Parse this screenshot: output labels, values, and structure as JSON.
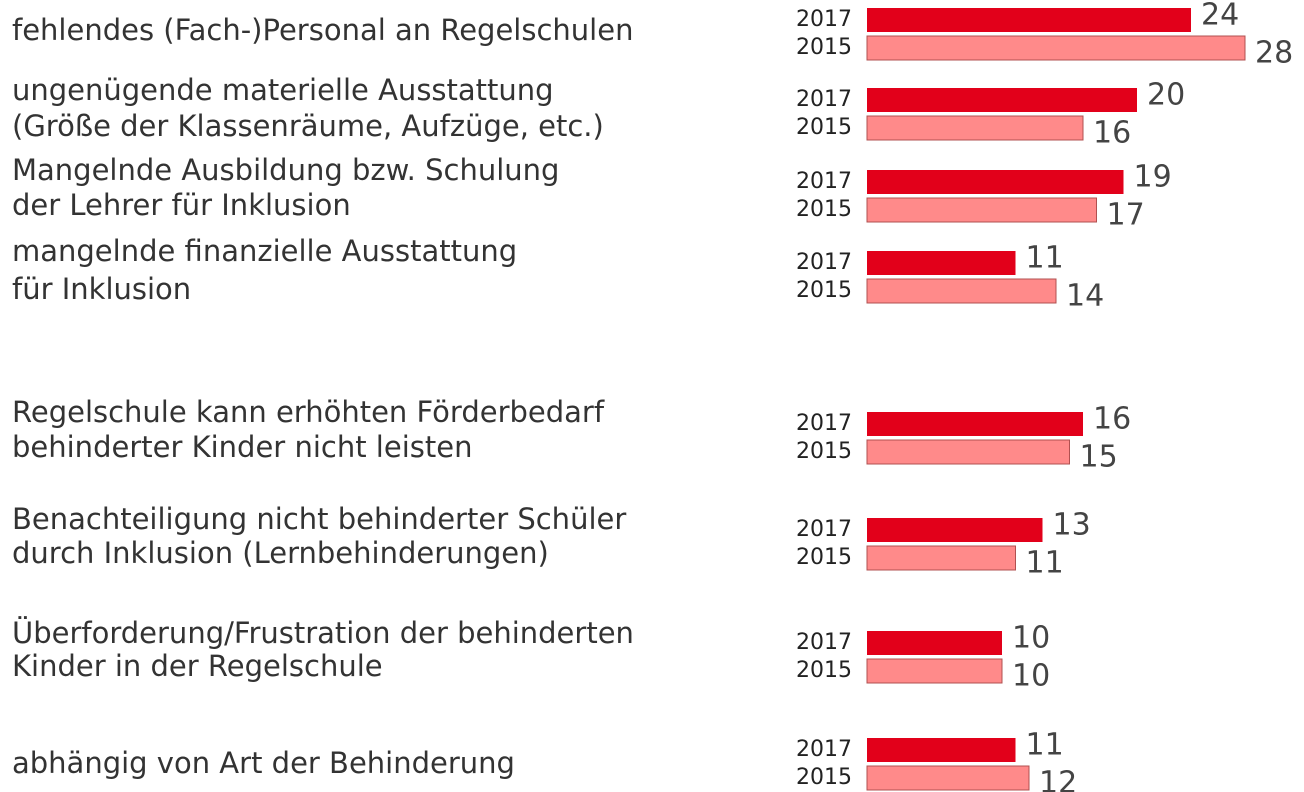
{
  "chart_data": {
    "type": "bar",
    "orientation": "horizontal",
    "categories": [
      [
        "fehlendes (Fach-)Personal an Regelschulen"
      ],
      [
        "ungenügende materielle Ausstattung",
        "(Größe der Klassenräume, Aufzüge, etc.)"
      ],
      [
        "Mangelnde Ausbildung bzw. Schulung",
        "der Lehrer für Inklusion"
      ],
      [
        "mangelnde finanzielle Ausstattung",
        "für Inklusion"
      ],
      [
        "Regelschule kann erhöhten Förderbedarf",
        "behinderter Kinder nicht leisten"
      ],
      [
        "Benachteiligung nicht behinderter Schüler",
        "durch Inklusion (Lernbehinderungen)"
      ],
      [
        "Überforderung/Frustration der behinderten",
        "Kinder in der Regelschule"
      ],
      [
        "abhängig von Art der Behinderung"
      ]
    ],
    "series": [
      {
        "name": "2017",
        "color": "#e2001a",
        "values": [
          24,
          20,
          19,
          11,
          16,
          13,
          10,
          11
        ]
      },
      {
        "name": "2015",
        "color": "#ff8a8a",
        "values": [
          28,
          16,
          17,
          14,
          15,
          11,
          10,
          12
        ]
      }
    ],
    "xlim": [
      0,
      32
    ]
  }
}
